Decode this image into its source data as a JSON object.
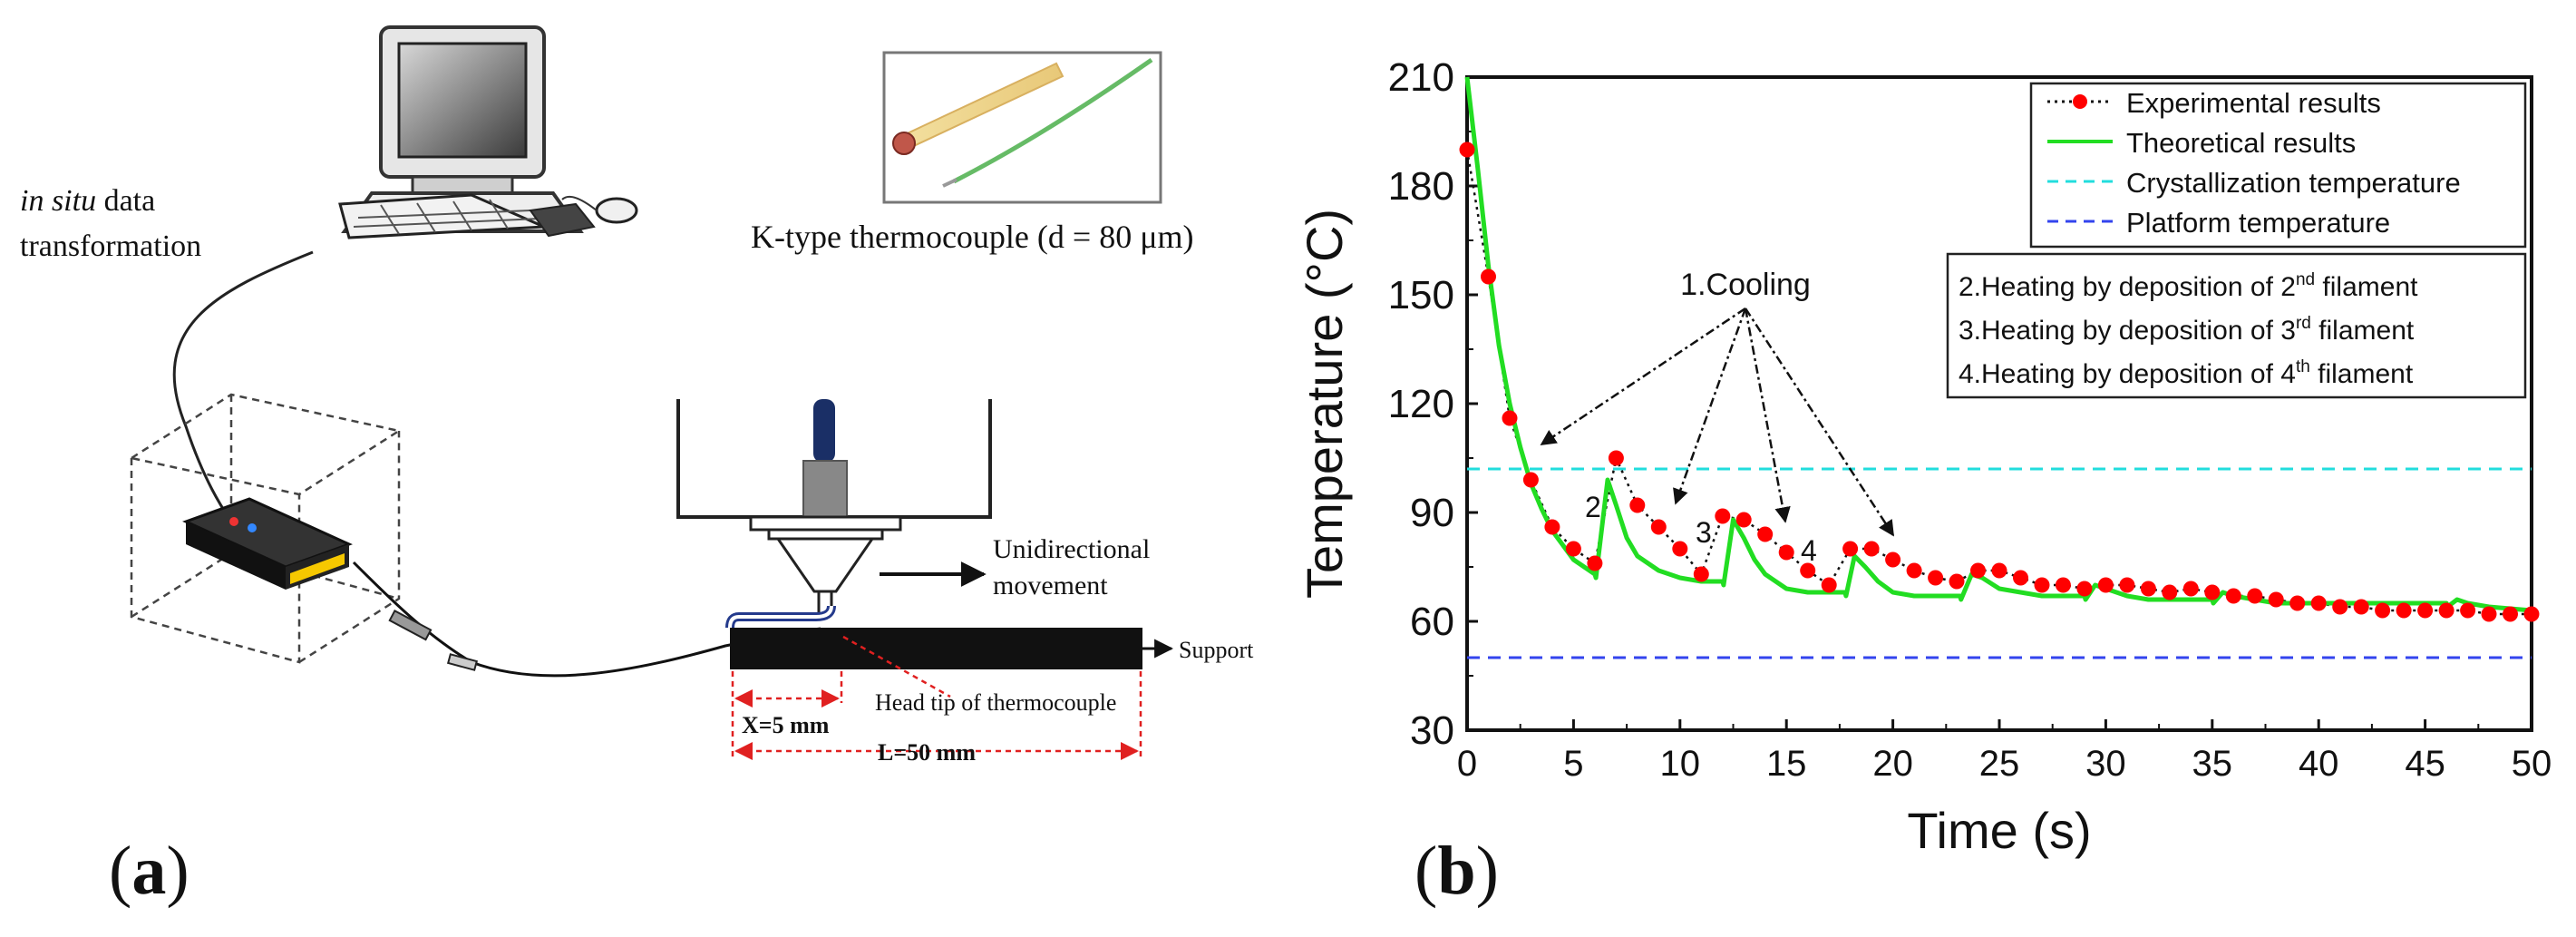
{
  "panel_a": {
    "label": "(a)",
    "insitu_italic": "in situ",
    "insitu_rest": " data",
    "transformation": "transformation",
    "thermocouple_label": "K-type thermocouple (d = 80 μm)",
    "unidirectional": "Unidirectional",
    "movement": "movement",
    "support": "Support",
    "head_tip": "Head tip of thermocouple",
    "x_dim": "X=5 mm",
    "l_dim": "L=50 mm"
  },
  "panel_b": {
    "label": "(b)",
    "cooling_label": "1.Cooling",
    "peak_labels": [
      "2",
      "3",
      "4"
    ],
    "legend_items": [
      "Experimental results",
      "Theoretical results",
      "Crystallization temperature",
      "Platform temperature"
    ],
    "heating_legend": [
      {
        "prefix": "2.Heating by deposition of 2",
        "sup": "nd",
        "suffix": " filament"
      },
      {
        "prefix": "3.Heating by deposition of 3",
        "sup": "rd",
        "suffix": " filament"
      },
      {
        "prefix": "4.Heating by deposition of 4",
        "sup": "th",
        "suffix": " filament"
      }
    ]
  },
  "colors": {
    "experimental": "#ff0000",
    "theoretical": "#22dd22",
    "crystallization": "#22dddd",
    "platform": "#3344ee"
  },
  "chart_data": {
    "type": "line",
    "title": "",
    "xlabel": "Time (s)",
    "ylabel": "Temperature (°C)",
    "xlim": [
      0,
      50
    ],
    "ylim": [
      30,
      210
    ],
    "xticks": [
      0,
      5,
      10,
      15,
      20,
      25,
      30,
      35,
      40,
      45,
      50
    ],
    "yticks": [
      30,
      60,
      90,
      120,
      150,
      180,
      210
    ],
    "series": [
      {
        "name": "Experimental results",
        "style": "dotted line with circle markers",
        "x": [
          0,
          1,
          2,
          3,
          4,
          5,
          6,
          7,
          8,
          9,
          10,
          11,
          12,
          13,
          14,
          15,
          16,
          17,
          18,
          19,
          20,
          21,
          22,
          23,
          24,
          25,
          26,
          27,
          28,
          29,
          30,
          31,
          32,
          33,
          34,
          35,
          36,
          37,
          38,
          39,
          40,
          41,
          42,
          43,
          44,
          45,
          46,
          47,
          48,
          49,
          50
        ],
        "y": [
          190,
          155,
          116,
          99,
          86,
          80,
          76,
          105,
          92,
          86,
          80,
          73,
          89,
          88,
          84,
          79,
          74,
          70,
          80,
          80,
          77,
          74,
          72,
          71,
          74,
          74,
          72,
          70,
          70,
          69,
          70,
          70,
          69,
          68,
          69,
          68,
          67,
          67,
          66,
          65,
          65,
          64,
          64,
          63,
          63,
          63,
          63,
          63,
          62,
          62,
          62
        ]
      },
      {
        "name": "Theoretical results",
        "style": "solid line",
        "x": [
          0,
          0.5,
          1,
          1.5,
          2,
          2.5,
          3,
          3.5,
          4,
          5,
          6,
          6.05,
          6.6,
          7,
          7.5,
          8,
          9,
          10,
          11,
          12,
          12.05,
          12.5,
          13,
          13.5,
          14,
          15,
          16,
          17,
          17.75,
          17.8,
          18.2,
          18.7,
          19.3,
          20,
          21,
          22,
          23.15,
          23.2,
          23.7,
          24.2,
          25,
          26,
          27,
          28,
          29,
          29.05,
          29.5,
          30,
          31,
          32,
          33,
          34,
          35,
          35.05,
          35.5,
          36,
          37,
          38,
          40,
          42,
          44,
          46,
          46.05,
          46.5,
          47,
          48,
          50
        ],
        "y": [
          210,
          185,
          158,
          136,
          120,
          108,
          98,
          91,
          85,
          77,
          73,
          72,
          99,
          92,
          83,
          78,
          74,
          72,
          71,
          71,
          70,
          88,
          83,
          77,
          73,
          69,
          68,
          68,
          68,
          67,
          78,
          75,
          71,
          68,
          67,
          67,
          67,
          66,
          73,
          72,
          69,
          68,
          67,
          67,
          67,
          66,
          70,
          69,
          67,
          66,
          66,
          66,
          66,
          65,
          68,
          67,
          66,
          65,
          65,
          65,
          65,
          65,
          64,
          66,
          65,
          64,
          63
        ]
      },
      {
        "name": "Crystallization temperature",
        "style": "dashed horizontal line",
        "y": 102
      },
      {
        "name": "Platform temperature",
        "style": "dashed horizontal line",
        "y": 50
      }
    ]
  }
}
